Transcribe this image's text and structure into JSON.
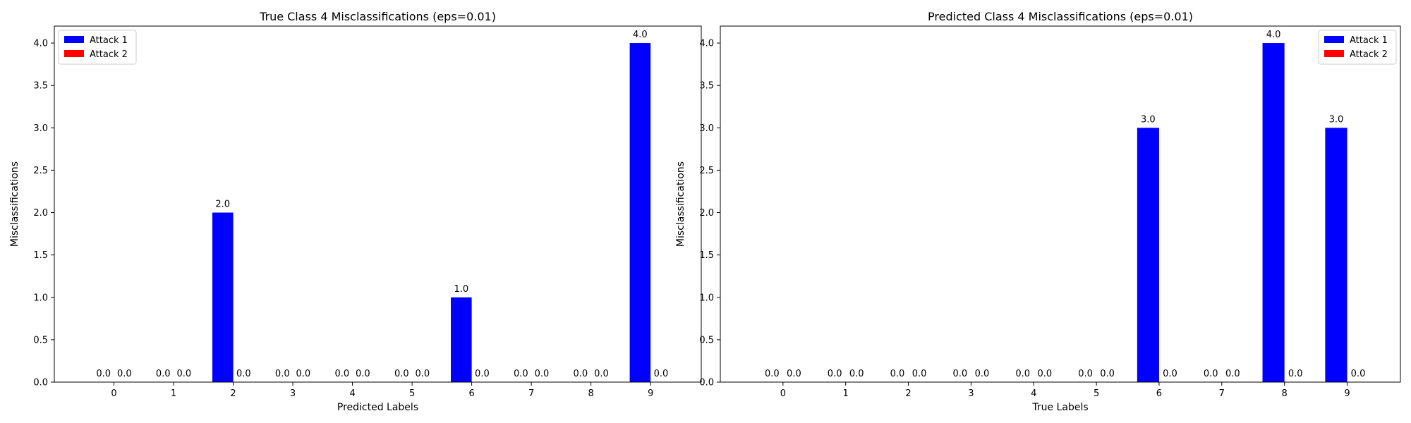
{
  "chart_data": [
    {
      "type": "bar",
      "title": "True Class 4 Misclassifications (eps=0.01)",
      "xlabel": "Predicted Labels",
      "ylabel": "Misclassifications",
      "categories": [
        "0",
        "1",
        "2",
        "3",
        "4",
        "5",
        "6",
        "7",
        "8",
        "9"
      ],
      "series": [
        {
          "name": "Attack 1",
          "color": "#0000ff",
          "values": [
            0,
            0,
            2,
            0,
            0,
            0,
            1,
            0,
            0,
            4
          ]
        },
        {
          "name": "Attack 2",
          "color": "#ff0000",
          "values": [
            0,
            0,
            0,
            0,
            0,
            0,
            0,
            0,
            0,
            0
          ]
        }
      ],
      "ylim": [
        0,
        4.2
      ],
      "yticks": [
        "0.0",
        "0.5",
        "1.0",
        "1.5",
        "2.0",
        "2.5",
        "3.0",
        "3.5",
        "4.0"
      ],
      "legend_position": "top-left",
      "grid": false
    },
    {
      "type": "bar",
      "title": "Predicted Class 4 Misclassifications (eps=0.01)",
      "xlabel": "True Labels",
      "ylabel": "Misclassifications",
      "categories": [
        "0",
        "1",
        "2",
        "3",
        "4",
        "5",
        "6",
        "7",
        "8",
        "9"
      ],
      "series": [
        {
          "name": "Attack 1",
          "color": "#0000ff",
          "values": [
            0,
            0,
            0,
            0,
            0,
            0,
            3,
            0,
            4,
            3
          ]
        },
        {
          "name": "Attack 2",
          "color": "#ff0000",
          "values": [
            0,
            0,
            0,
            0,
            0,
            0,
            0,
            0,
            0,
            0
          ]
        }
      ],
      "ylim": [
        0,
        4.2
      ],
      "yticks": [
        "0.0",
        "0.5",
        "1.0",
        "1.5",
        "2.0",
        "2.5",
        "3.0",
        "3.5",
        "4.0"
      ],
      "legend_position": "top-right",
      "grid": false
    }
  ]
}
